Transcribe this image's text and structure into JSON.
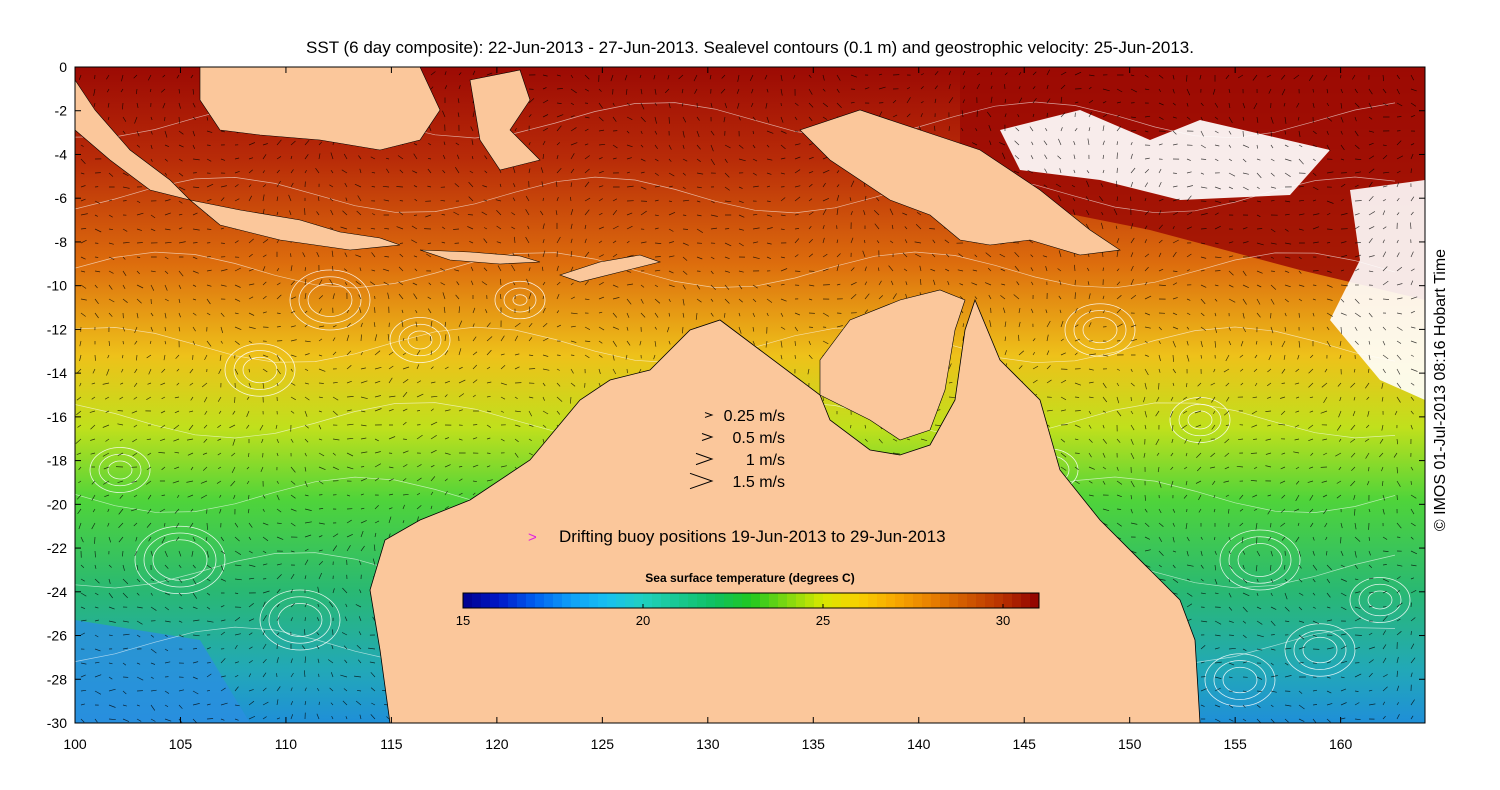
{
  "title": "SST (6 day composite): 22-Jun-2013 - 27-Jun-2013. Sealevel contours (0.1 m) and geostrophic velocity: 25-Jun-2013.",
  "credit": "© IMOS 01-Jul-2013 08:16 Hobart Time",
  "velocity_legend": [
    {
      "label": "0.25 m/s",
      "speed": 0.25
    },
    {
      "label": "0.5 m/s",
      "speed": 0.5
    },
    {
      "label": "1 m/s",
      "speed": 1
    },
    {
      "label": "1.5 m/s",
      "speed": 1.5
    }
  ],
  "buoy_legend": {
    "label": "Drifting buoy positions 19-Jun-2013 to 29-Jun-2013",
    "color": "#e020e0"
  },
  "colorbar": {
    "title": "Sea surface temperature (degrees C)",
    "min": 15,
    "max": 31,
    "ticks": [
      "15",
      "20",
      "25",
      "30"
    ],
    "tick_values": [
      15,
      20,
      25,
      30
    ]
  },
  "axes": {
    "lon_range": [
      100,
      164
    ],
    "lat_range": [
      -30,
      0
    ],
    "x_ticks": [
      "100",
      "105",
      "110",
      "115",
      "120",
      "125",
      "130",
      "135",
      "140",
      "145",
      "150",
      "155",
      "160"
    ],
    "y_ticks": [
      "0",
      "-2",
      "-4",
      "-6",
      "-8",
      "-10",
      "-12",
      "-14",
      "-16",
      "-18",
      "-20",
      "-22",
      "-24",
      "-26",
      "-28",
      "-30"
    ]
  },
  "colors": {
    "land": "#fbc79b",
    "contour": "#ffffff",
    "arrow": "#000000",
    "frame": "#000000"
  }
}
